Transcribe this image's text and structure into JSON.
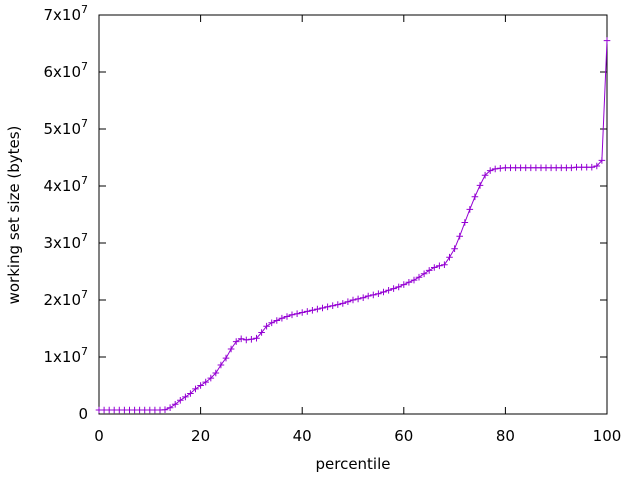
{
  "figure": {
    "background_color": "#ffffff",
    "text_color": "#000000"
  },
  "chart_data": {
    "type": "line",
    "title": "",
    "xlabel": "percentile",
    "ylabel": "working set size (bytes)",
    "xlim": [
      0,
      100
    ],
    "ylim": [
      0,
      70000000
    ],
    "grid": false,
    "legend_position": "none",
    "border_color": "#000000",
    "tick_style": "inward-mirrored",
    "x_ticks": [
      {
        "label": "0",
        "value": 0
      },
      {
        "label": "20",
        "value": 20
      },
      {
        "label": "40",
        "value": 40
      },
      {
        "label": "60",
        "value": 60
      },
      {
        "label": "80",
        "value": 80
      },
      {
        "label": "100",
        "value": 100
      }
    ],
    "y_ticks": [
      {
        "label": "0",
        "value": 0
      },
      {
        "label": "1x10",
        "sup": "7",
        "value": 10000000
      },
      {
        "label": "2x10",
        "sup": "7",
        "value": 20000000
      },
      {
        "label": "3x10",
        "sup": "7",
        "value": 30000000
      },
      {
        "label": "4x10",
        "sup": "7",
        "value": 40000000
      },
      {
        "label": "5x10",
        "sup": "7",
        "value": 50000000
      },
      {
        "label": "6x10",
        "sup": "7",
        "value": 60000000
      },
      {
        "label": "7x10",
        "sup": "7",
        "value": 70000000
      }
    ],
    "series": [
      {
        "name": "working-set-size",
        "color": "#9400d3",
        "marker": "plus",
        "marker_size": 3.3,
        "x": [
          0,
          1,
          2,
          3,
          4,
          5,
          6,
          7,
          8,
          9,
          10,
          11,
          12,
          13,
          14,
          15,
          16,
          17,
          18,
          19,
          20,
          21,
          22,
          23,
          24,
          25,
          26,
          27,
          28,
          29,
          30,
          31,
          32,
          33,
          34,
          35,
          36,
          37,
          38,
          39,
          40,
          41,
          42,
          43,
          44,
          45,
          46,
          47,
          48,
          49,
          50,
          51,
          52,
          53,
          54,
          55,
          56,
          57,
          58,
          59,
          60,
          61,
          62,
          63,
          64,
          65,
          66,
          67,
          68,
          69,
          70,
          71,
          72,
          73,
          74,
          75,
          76,
          77,
          78,
          79,
          80,
          81,
          82,
          83,
          84,
          85,
          86,
          87,
          88,
          89,
          90,
          91,
          92,
          93,
          94,
          95,
          96,
          97,
          98,
          99,
          100
        ],
        "y": [
          700000,
          700000,
          700000,
          700000,
          700000,
          700000,
          700000,
          700000,
          700000,
          700000,
          700000,
          700000,
          700000,
          750000,
          1100000,
          1700000,
          2400000,
          3000000,
          3600000,
          4400000,
          5000000,
          5600000,
          6300000,
          7200000,
          8600000,
          9800000,
          11400000,
          12700000,
          13200000,
          13000000,
          13100000,
          13300000,
          14300000,
          15400000,
          16000000,
          16400000,
          16800000,
          17100000,
          17400000,
          17600000,
          17800000,
          18000000,
          18200000,
          18400000,
          18600000,
          18800000,
          19000000,
          19200000,
          19400000,
          19700000,
          20000000,
          20200000,
          20400000,
          20700000,
          20900000,
          21100000,
          21400000,
          21700000,
          22000000,
          22300000,
          22700000,
          23100000,
          23500000,
          24000000,
          24600000,
          25200000,
          25700000,
          26000000,
          26200000,
          27500000,
          29000000,
          31200000,
          33600000,
          35900000,
          38100000,
          40100000,
          41900000,
          42700000,
          43000000,
          43100000,
          43200000,
          43200000,
          43200000,
          43200000,
          43200000,
          43200000,
          43200000,
          43200000,
          43200000,
          43200000,
          43200000,
          43200000,
          43200000,
          43200000,
          43300000,
          43300000,
          43300000,
          43300000,
          43500000,
          44500000,
          65500000
        ]
      }
    ]
  }
}
